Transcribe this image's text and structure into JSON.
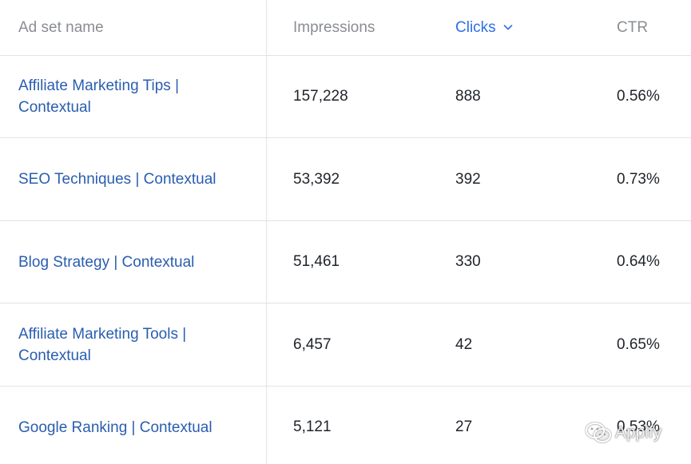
{
  "table": {
    "headers": {
      "name": "Ad set name",
      "impressions": "Impressions",
      "clicks": "Clicks",
      "ctr": "CTR"
    },
    "sorted_by": "clicks",
    "rows": [
      {
        "name": "Affiliate Marketing Tips | Contextual",
        "impressions": "157,228",
        "clicks": "888",
        "ctr": "0.56%"
      },
      {
        "name": "SEO Techniques | Contextual",
        "impressions": "53,392",
        "clicks": "392",
        "ctr": "0.73%"
      },
      {
        "name": "Blog Strategy | Contextual",
        "impressions": "51,461",
        "clicks": "330",
        "ctr": "0.64%"
      },
      {
        "name": "Affiliate Marketing Tools | Contextual",
        "impressions": "6,457",
        "clicks": "42",
        "ctr": "0.65%"
      },
      {
        "name": "Google Ranking | Contextual",
        "impressions": "5,121",
        "clicks": "27",
        "ctr": "0.53%"
      }
    ]
  },
  "watermark": {
    "text": "Appify",
    "icon": "wechat-icon"
  },
  "colors": {
    "link": "#2a5db0",
    "active_header": "#2f6fe8",
    "header_text": "#8a8d93",
    "divider": "#e1e3e6"
  }
}
